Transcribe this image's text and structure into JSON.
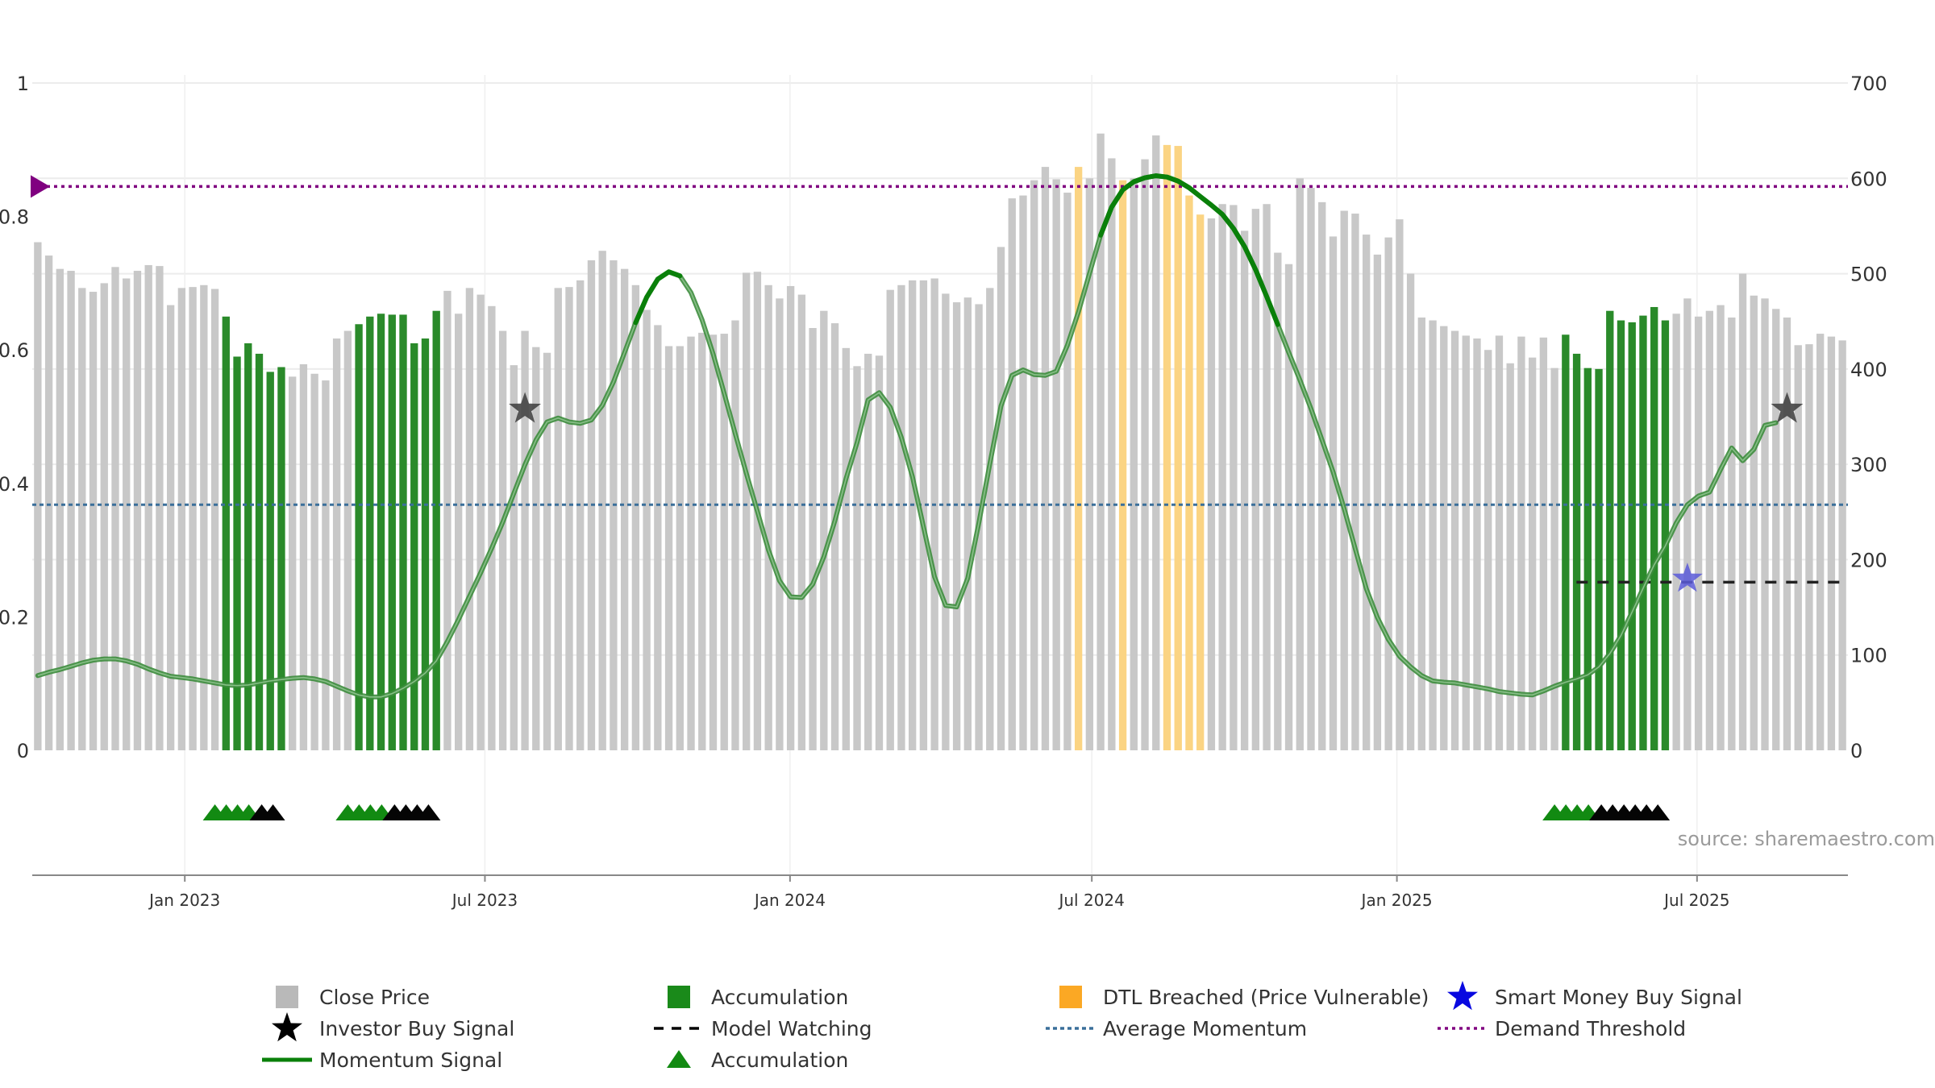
{
  "chart_data": {
    "type": "bar+line",
    "source_text": "source: sharemaestro.com",
    "left_axis": {
      "range": [
        0,
        1
      ],
      "ticks": [
        "0",
        "0.2",
        "0.4",
        "0.6",
        "0.8",
        "1"
      ]
    },
    "right_axis": {
      "range": [
        0,
        700
      ],
      "ticks": [
        "0",
        "100",
        "200",
        "300",
        "400",
        "500",
        "600",
        "700"
      ]
    },
    "x_axis": {
      "range": [
        "2022-10-01",
        "2025-09-30"
      ],
      "ticks": [
        {
          "label": "Jan 2023",
          "date": "2023-01-01"
        },
        {
          "label": "Jul 2023",
          "date": "2023-07-01"
        },
        {
          "label": "Jan 2024",
          "date": "2024-01-01"
        },
        {
          "label": "Jul 2024",
          "date": "2024-07-01"
        },
        {
          "label": "Jan 2025",
          "date": "2025-01-01"
        },
        {
          "label": "Jul 2025",
          "date": "2025-07-01"
        }
      ]
    },
    "close_price": [
      533,
      519,
      505,
      503,
      485,
      481,
      490,
      507,
      495,
      503,
      509,
      508,
      467,
      485,
      486,
      488,
      484,
      455,
      413,
      427,
      416,
      397,
      402,
      392,
      405,
      395,
      388,
      432,
      440,
      447,
      455,
      458,
      457,
      457,
      427,
      432,
      461,
      482,
      458,
      485,
      478,
      466,
      440,
      404,
      440,
      423,
      417,
      485,
      486,
      493,
      514,
      524,
      514,
      505,
      488,
      462,
      446,
      424,
      424,
      434,
      438,
      436,
      437,
      451,
      501,
      502,
      488,
      474,
      487,
      478,
      443,
      461,
      448,
      422,
      403,
      416,
      414,
      483,
      488,
      493,
      493,
      495,
      479,
      470,
      475,
      468,
      485,
      528,
      579,
      582,
      598,
      612,
      599,
      585,
      612,
      600,
      647,
      621,
      598,
      600,
      620,
      645,
      635,
      634,
      582,
      562,
      558,
      573,
      572,
      545,
      568,
      573,
      522,
      510,
      600,
      590,
      575,
      539,
      566,
      563,
      541,
      520,
      538,
      557,
      500,
      454,
      451,
      445,
      440,
      435,
      432,
      420,
      435,
      406,
      434,
      412,
      433,
      401,
      436,
      416,
      401,
      400,
      461,
      451,
      449,
      456,
      465,
      451,
      458,
      474,
      455,
      461,
      467,
      454,
      500,
      477,
      474,
      463,
      454,
      425,
      426,
      437,
      434,
      430
    ],
    "accumulation_ranges": [
      [
        17,
        22
      ],
      [
        29,
        36
      ],
      [
        138,
        147
      ]
    ],
    "dtl_ranges": [
      [
        94,
        94
      ],
      [
        98,
        98
      ],
      [
        102,
        105
      ]
    ],
    "momentum_signal": [
      0.112,
      0.117,
      0.121,
      0.126,
      0.131,
      0.135,
      0.137,
      0.137,
      0.134,
      0.129,
      0.122,
      0.116,
      0.111,
      0.109,
      0.107,
      0.104,
      0.101,
      0.098,
      0.097,
      0.098,
      0.101,
      0.104,
      0.106,
      0.108,
      0.109,
      0.107,
      0.103,
      0.096,
      0.089,
      0.083,
      0.08,
      0.08,
      0.085,
      0.093,
      0.103,
      0.116,
      0.134,
      0.163,
      0.196,
      0.231,
      0.266,
      0.303,
      0.342,
      0.385,
      0.428,
      0.465,
      0.492,
      0.498,
      0.492,
      0.49,
      0.495,
      0.517,
      0.552,
      0.596,
      0.641,
      0.679,
      0.706,
      0.717,
      0.711,
      0.686,
      0.645,
      0.594,
      0.535,
      0.474,
      0.415,
      0.358,
      0.3,
      0.254,
      0.23,
      0.229,
      0.249,
      0.29,
      0.344,
      0.407,
      0.461,
      0.525,
      0.536,
      0.514,
      0.469,
      0.41,
      0.335,
      0.26,
      0.217,
      0.215,
      0.258,
      0.341,
      0.43,
      0.516,
      0.562,
      0.57,
      0.563,
      0.562,
      0.568,
      0.607,
      0.657,
      0.715,
      0.772,
      0.814,
      0.84,
      0.852,
      0.858,
      0.861,
      0.859,
      0.853,
      0.843,
      0.83,
      0.817,
      0.803,
      0.782,
      0.755,
      0.72,
      0.68,
      0.638,
      0.596,
      0.555,
      0.512,
      0.465,
      0.417,
      0.362,
      0.302,
      0.242,
      0.199,
      0.166,
      0.141,
      0.125,
      0.112,
      0.104,
      0.102,
      0.101,
      0.098,
      0.095,
      0.092,
      0.088,
      0.086,
      0.084,
      0.083,
      0.089,
      0.096,
      0.102,
      0.107,
      0.113,
      0.125,
      0.145,
      0.172,
      0.207,
      0.243,
      0.278,
      0.306,
      0.341,
      0.368,
      0.381,
      0.387,
      0.421,
      0.453,
      0.434,
      0.451,
      0.487,
      0.491
    ],
    "momentum_strong_ranges": [
      [
        54,
        58
      ],
      [
        96,
        112
      ]
    ],
    "average_momentum": 0.368,
    "demand_threshold": 0.845,
    "model_watching_level": 0.252,
    "model_watching_start_index": 140,
    "investor_buy_signals": [
      {
        "index": 44,
        "price": 358
      },
      {
        "index": 158,
        "price": 358
      }
    ],
    "smart_money_buy_signals": [
      {
        "index": 149,
        "price": 180
      }
    ],
    "signal_triangles": [
      {
        "start": 16,
        "green": 4,
        "black": 2
      },
      {
        "start": 28,
        "green": 4,
        "black": 4
      },
      {
        "start": 137,
        "green": 4,
        "black": 6
      }
    ],
    "legend": [
      {
        "key": "close",
        "label": "Close Price"
      },
      {
        "key": "accum-bar",
        "label": "Accumulation"
      },
      {
        "key": "dtl",
        "label": "DTL Breached (Price Vulnerable)"
      },
      {
        "key": "smart",
        "label": "Smart Money Buy Signal"
      },
      {
        "key": "investor",
        "label": "Investor Buy Signal"
      },
      {
        "key": "watching",
        "label": "Model Watching"
      },
      {
        "key": "avgmom",
        "label": "Average Momentum"
      },
      {
        "key": "demand",
        "label": "Demand Threshold"
      },
      {
        "key": "momentum",
        "label": "Momentum Signal"
      },
      {
        "key": "accum-tri",
        "label": "Accumulation"
      }
    ],
    "colors": {
      "close": "#c8c8c8",
      "accumulation": "#2a8a2a",
      "dtl": "#fbd483",
      "momentum": "#3c8c3c",
      "momentum_strong": "#0a800a",
      "average_momentum": "#3a6f9a",
      "demand": "#800080",
      "smart_money": "#1515d8",
      "investor": "#111111"
    }
  }
}
